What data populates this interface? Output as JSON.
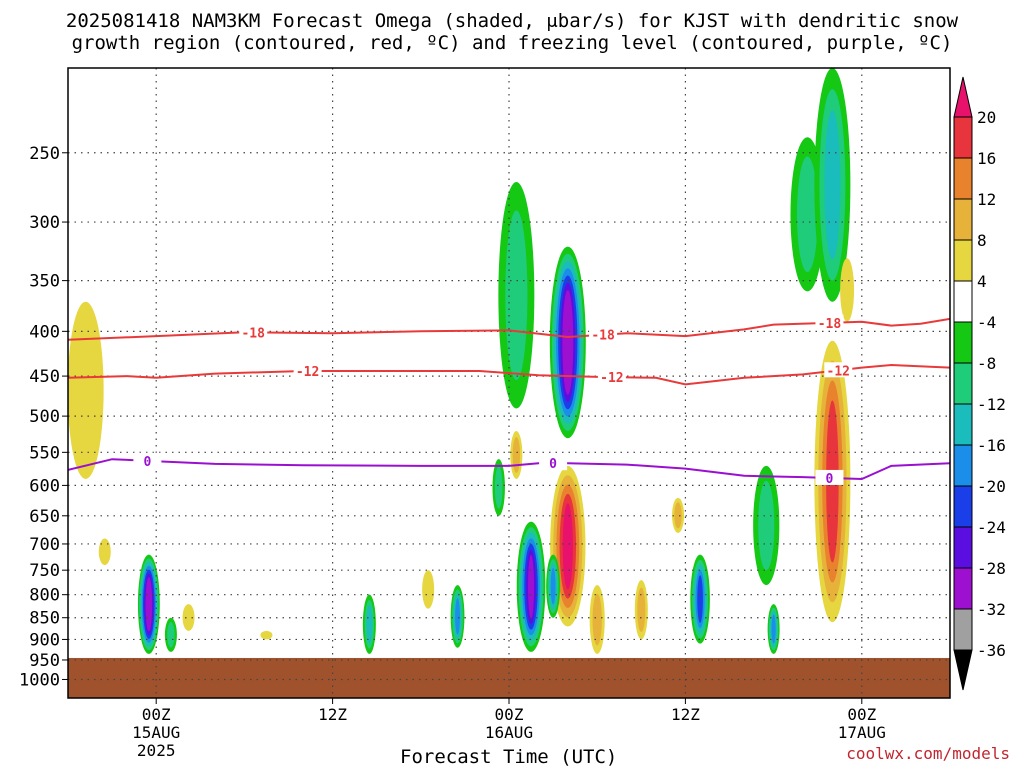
{
  "chart_data": {
    "type": "heatmap",
    "title_line1": "2025081418 NAM3KM Forecast Omega (shaded, μbar/s) for KJST with dendritic snow",
    "title_line2": "growth region (contoured, red, ºC) and freezing level (contoured, purple, ºC)",
    "xlabel": "Forecast Time (UTC)",
    "ylabel": "",
    "credit": "coolwx.com/models",
    "x_ticks": [
      {
        "label": "00Z",
        "sub1": "15AUG",
        "sub2": "2025",
        "hours": 6
      },
      {
        "label": "12Z",
        "sub1": "",
        "sub2": "",
        "hours": 18
      },
      {
        "label": "00Z",
        "sub1": "16AUG",
        "sub2": "",
        "hours": 30
      },
      {
        "label": "12Z",
        "sub1": "",
        "sub2": "",
        "hours": 42
      },
      {
        "label": "00Z",
        "sub1": "17AUG",
        "sub2": "",
        "hours": 54
      }
    ],
    "x_range_hours": [
      0,
      60
    ],
    "y_ticks": [
      "250",
      "300",
      "350",
      "400",
      "450",
      "500",
      "550",
      "600",
      "650",
      "700",
      "750",
      "800",
      "850",
      "900",
      "950",
      "1000"
    ],
    "y_range_hpa": [
      1050,
      200
    ],
    "y_scale": "log",
    "grid": true,
    "colorbar": {
      "labels": [
        "20",
        "16",
        "12",
        "8",
        "4",
        "-4",
        "-8",
        "-12",
        "-16",
        "-20",
        "-24",
        "-28",
        "-32",
        "-36"
      ],
      "colors": [
        "#e8116b",
        "#e8343c",
        "#e9822c",
        "#e6b23a",
        "#e6d640",
        "#ffffff",
        "#14c814",
        "#1ecc7a",
        "#1bbcbc",
        "#1a8ee8",
        "#1a3ee8",
        "#5a0fe0",
        "#9e10d0",
        "#a0a0a0"
      ]
    },
    "contours": [
      {
        "label": "-18",
        "color": "#e83a3a",
        "points": [
          [
            0,
            409
          ],
          [
            6,
            405
          ],
          [
            12,
            401
          ],
          [
            18,
            402
          ],
          [
            24,
            400
          ],
          [
            30,
            399
          ],
          [
            34,
            406
          ],
          [
            38,
            402
          ],
          [
            42,
            405
          ],
          [
            46,
            398
          ],
          [
            48,
            393
          ],
          [
            52,
            391
          ],
          [
            54,
            390
          ],
          [
            56,
            394
          ],
          [
            58,
            392
          ],
          [
            60,
            387
          ]
        ]
      },
      {
        "label": "-12",
        "color": "#e83a3a",
        "points": [
          [
            0,
            452
          ],
          [
            4,
            450
          ],
          [
            6,
            452
          ],
          [
            10,
            447
          ],
          [
            16,
            444
          ],
          [
            22,
            444
          ],
          [
            28,
            444
          ],
          [
            32,
            449
          ],
          [
            36,
            451
          ],
          [
            40,
            452
          ],
          [
            42,
            460
          ],
          [
            46,
            452
          ],
          [
            50,
            448
          ],
          [
            54,
            440
          ],
          [
            56,
            437
          ],
          [
            60,
            440
          ]
        ]
      },
      {
        "label": "0",
        "color": "#9a10d0",
        "points": [
          [
            0,
            576
          ],
          [
            3,
            560
          ],
          [
            6,
            563
          ],
          [
            10,
            567
          ],
          [
            16,
            569
          ],
          [
            24,
            570
          ],
          [
            30,
            570
          ],
          [
            32,
            566
          ],
          [
            34,
            566
          ],
          [
            38,
            568
          ],
          [
            42,
            574
          ],
          [
            46,
            585
          ],
          [
            50,
            587
          ],
          [
            54,
            590
          ],
          [
            56,
            570
          ],
          [
            60,
            566
          ]
        ]
      }
    ],
    "omega_cells": [
      {
        "hours": 5.5,
        "p_top": 720,
        "p_bot": 935,
        "value": -36
      },
      {
        "hours": 1.2,
        "p_top": 370,
        "p_bot": 590,
        "value": 4
      },
      {
        "hours": 2.5,
        "p_top": 690,
        "p_bot": 740,
        "value": 4
      },
      {
        "hours": 8.2,
        "p_top": 820,
        "p_bot": 880,
        "value": 4
      },
      {
        "hours": 7.0,
        "p_top": 850,
        "p_bot": 930,
        "value": -10
      },
      {
        "hours": 13.5,
        "p_top": 880,
        "p_bot": 900,
        "value": 4
      },
      {
        "hours": 20.5,
        "p_top": 800,
        "p_bot": 935,
        "value": -12
      },
      {
        "hours": 26.5,
        "p_top": 780,
        "p_bot": 920,
        "value": -16
      },
      {
        "hours": 24.5,
        "p_top": 750,
        "p_bot": 830,
        "value": 4
      },
      {
        "hours": 30.5,
        "p_top": 270,
        "p_bot": 490,
        "value": -8
      },
      {
        "hours": 30.5,
        "p_top": 520,
        "p_bot": 590,
        "value": 8
      },
      {
        "hours": 29.3,
        "p_top": 560,
        "p_bot": 650,
        "value": -8
      },
      {
        "hours": 31.5,
        "p_top": 660,
        "p_bot": 930,
        "value": -28
      },
      {
        "hours": 34.0,
        "p_top": 320,
        "p_bot": 530,
        "value": -32
      },
      {
        "hours": 34.0,
        "p_top": 570,
        "p_bot": 870,
        "value": 20
      },
      {
        "hours": 33.0,
        "p_top": 720,
        "p_bot": 850,
        "value": -16
      },
      {
        "hours": 36.0,
        "p_top": 780,
        "p_bot": 935,
        "value": 8
      },
      {
        "hours": 39.0,
        "p_top": 770,
        "p_bot": 900,
        "value": 8
      },
      {
        "hours": 41.5,
        "p_top": 620,
        "p_bot": 680,
        "value": 8
      },
      {
        "hours": 43.0,
        "p_top": 720,
        "p_bot": 910,
        "value": -20
      },
      {
        "hours": 47.5,
        "p_top": 570,
        "p_bot": 780,
        "value": -8
      },
      {
        "hours": 48.0,
        "p_top": 820,
        "p_bot": 935,
        "value": -16
      },
      {
        "hours": 50.3,
        "p_top": 240,
        "p_bot": 360,
        "value": -10
      },
      {
        "hours": 52.0,
        "p_top": 200,
        "p_bot": 370,
        "value": -12
      },
      {
        "hours": 52.0,
        "p_top": 410,
        "p_bot": 860,
        "value": 16
      },
      {
        "hours": 53.0,
        "p_top": 330,
        "p_bot": 390,
        "value": 4
      }
    ]
  }
}
